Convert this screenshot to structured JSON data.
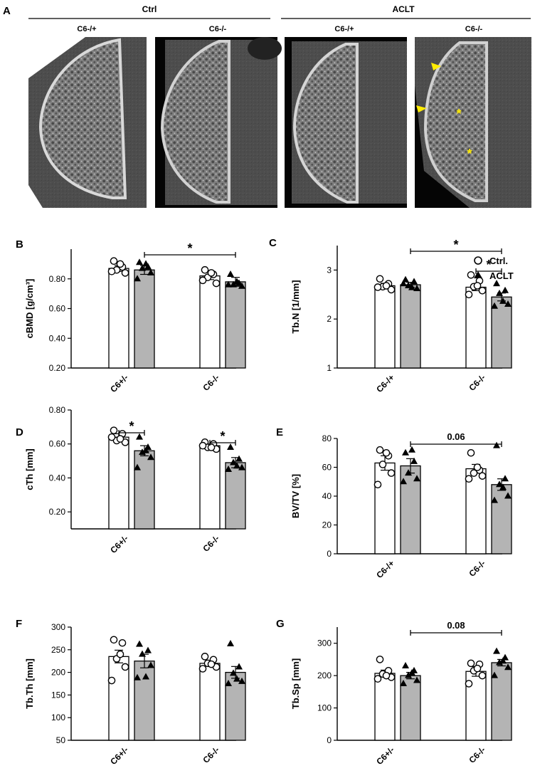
{
  "panel_a": {
    "letter": "A",
    "groups": [
      {
        "label": "Ctrl",
        "columns": [
          {
            "label": "C6-/+"
          },
          {
            "label": "C6-/-"
          }
        ]
      },
      {
        "label": "ACLT",
        "columns": [
          {
            "label": "C6-/+"
          },
          {
            "label": "C6-/-"
          }
        ]
      }
    ],
    "annotation_color": "#ffec00",
    "annotation_symbols": [
      "arrowhead",
      "arrowhead",
      "*",
      "*"
    ]
  },
  "legend": [
    {
      "label": "Ctrl.",
      "marker": "open-circle"
    },
    {
      "label": "ACLT",
      "marker": "filled-triangle"
    }
  ],
  "colors": {
    "ctrl_bar": "#ffffff",
    "aclt_bar": "#b4b4b4",
    "axis": "#000000",
    "highlight": "#ffec00"
  },
  "chart_data": [
    {
      "panel": "B",
      "type": "bar",
      "ylabel": "cBMD [g/cm³]",
      "ylim": [
        0.2,
        1.0
      ],
      "yticks": [
        0.2,
        0.4,
        0.6,
        0.8
      ],
      "tick_labels": [
        "0.20",
        "0.40",
        "0.60",
        "0.80"
      ],
      "categories": [
        "C6+/-",
        "C6-/-"
      ],
      "series": [
        {
          "name": "Ctrl.",
          "values": [
            0.87,
            0.82
          ],
          "sem": [
            0.02,
            0.025
          ],
          "points": [
            [
              0.92,
              0.88,
              0.86,
              0.84,
              0.85,
              0.9
            ],
            [
              0.86,
              0.83,
              0.81,
              0.77,
              0.79,
              0.84
            ]
          ]
        },
        {
          "name": "ACLT",
          "values": [
            0.86,
            0.78
          ],
          "sem": [
            0.03,
            0.03
          ],
          "points": [
            [
              0.91,
              0.88,
              0.87,
              0.84,
              0.8,
              0.9
            ],
            [
              0.83,
              0.77,
              0.76,
              0.75,
              0.76,
              0.78
            ]
          ]
        }
      ],
      "brackets": [
        {
          "from": [
            0,
            1
          ],
          "to": [
            1,
            1
          ],
          "label": "*"
        }
      ]
    },
    {
      "panel": "C",
      "type": "bar",
      "ylabel": "Tb.N [1/mm]",
      "ylim": [
        1,
        3.5
      ],
      "yticks": [
        1,
        2,
        3
      ],
      "tick_labels": [
        "1",
        "2",
        "3"
      ],
      "categories": [
        "C6-/+",
        "C6-/-"
      ],
      "series": [
        {
          "name": "Ctrl.",
          "values": [
            2.68,
            2.65
          ],
          "sem": [
            0.05,
            0.07
          ],
          "points": [
            [
              2.82,
              2.72,
              2.66,
              2.6,
              2.65,
              2.68
            ],
            [
              2.9,
              2.78,
              2.66,
              2.58,
              2.5,
              2.68
            ]
          ]
        },
        {
          "name": "ACLT",
          "values": [
            2.7,
            2.45
          ],
          "sem": [
            0.05,
            0.08
          ],
          "points": [
            [
              2.8,
              2.76,
              2.68,
              2.62,
              2.72,
              2.64
            ],
            [
              2.72,
              2.58,
              2.52,
              2.3,
              2.26,
              2.36
            ]
          ]
        }
      ],
      "brackets": [
        {
          "from": [
            0,
            1
          ],
          "to": [
            1,
            1
          ],
          "label": "*"
        },
        {
          "from": [
            1,
            0
          ],
          "to": [
            1,
            1
          ],
          "label": "*"
        }
      ]
    },
    {
      "panel": "D",
      "type": "bar",
      "ylabel": "cTh [mm]",
      "ylim": [
        0.1,
        0.8
      ],
      "yticks": [
        0.2,
        0.4,
        0.6,
        0.8
      ],
      "tick_labels": [
        "0.20",
        "0.40",
        "0.60",
        "0.80"
      ],
      "categories": [
        "C6+/-",
        "C6-/-"
      ],
      "series": [
        {
          "name": "Ctrl.",
          "values": [
            0.64,
            0.59
          ],
          "sem": [
            0.02,
            0.01
          ],
          "points": [
            [
              0.68,
              0.66,
              0.62,
              0.61,
              0.64,
              0.63
            ],
            [
              0.61,
              0.6,
              0.58,
              0.57,
              0.59,
              0.58
            ]
          ]
        },
        {
          "name": "ACLT",
          "values": [
            0.56,
            0.49
          ],
          "sem": [
            0.03,
            0.03
          ],
          "points": [
            [
              0.64,
              0.58,
              0.55,
              0.52,
              0.46,
              0.56
            ],
            [
              0.58,
              0.51,
              0.49,
              0.46,
              0.45,
              0.47
            ]
          ]
        }
      ],
      "brackets": [
        {
          "from": [
            0,
            0
          ],
          "to": [
            0,
            1
          ],
          "label": "*"
        },
        {
          "from": [
            1,
            0
          ],
          "to": [
            1,
            1
          ],
          "label": "*"
        }
      ]
    },
    {
      "panel": "E",
      "type": "bar",
      "ylabel": "BV/TV [%]",
      "ylim": [
        0,
        80
      ],
      "yticks": [
        0,
        20,
        40,
        60,
        80
      ],
      "tick_labels": [
        "0",
        "20",
        "40",
        "60",
        "80"
      ],
      "categories": [
        "C6-/+",
        "C6-/-"
      ],
      "series": [
        {
          "name": "Ctrl.",
          "values": [
            63,
            59
          ],
          "sem": [
            5,
            3
          ],
          "points": [
            [
              72,
              68,
              62,
              56,
              48,
              70
            ],
            [
              70,
              58,
              56,
              54,
              52,
              60
            ]
          ]
        },
        {
          "name": "ACLT",
          "values": [
            61,
            48
          ],
          "sem": [
            5,
            4
          ],
          "points": [
            [
              70,
              64,
              56,
              52,
              50,
              72
            ],
            [
              75,
              52,
              48,
              40,
              37,
              46
            ]
          ]
        }
      ],
      "brackets": [
        {
          "from": [
            0,
            1
          ],
          "to": [
            1,
            1
          ],
          "label": "0.06"
        }
      ]
    },
    {
      "panel": "F",
      "type": "bar",
      "ylabel": "Tb.Th [mm]",
      "ylim": [
        50,
        300
      ],
      "yticks": [
        50,
        100,
        150,
        200,
        250,
        300
      ],
      "tick_labels": [
        "50",
        "100",
        "150",
        "200",
        "250",
        "300"
      ],
      "categories": [
        "C6+/-",
        "C6-/-"
      ],
      "series": [
        {
          "name": "Ctrl.",
          "values": [
            235,
            220
          ],
          "sem": [
            14,
            6
          ],
          "points": [
            [
              272,
              265,
              230,
              212,
              182,
              240
            ],
            [
              235,
              228,
              220,
              212,
              208,
              218
            ]
          ]
        },
        {
          "name": "ACLT",
          "values": [
            225,
            200
          ],
          "sem": [
            15,
            13
          ],
          "points": [
            [
              262,
              248,
              240,
              215,
              188,
              190
            ],
            [
              263,
              212,
              198,
              180,
              175,
              185
            ]
          ]
        }
      ],
      "brackets": []
    },
    {
      "panel": "G",
      "type": "bar",
      "ylabel": "Tb.Sp [mm]",
      "ylim": [
        0,
        350
      ],
      "yticks": [
        0,
        100,
        200,
        300
      ],
      "tick_labels": [
        "0",
        "100",
        "200",
        "300"
      ],
      "categories": [
        "C6+/-",
        "C6-/-"
      ],
      "series": [
        {
          "name": "Ctrl.",
          "values": [
            207,
            213
          ],
          "sem": [
            10,
            15
          ],
          "points": [
            [
              250,
              215,
              205,
              195,
              190,
              200
            ],
            [
              238,
              235,
              215,
              200,
              175,
              222
            ]
          ]
        },
        {
          "name": "ACLT",
          "values": [
            200,
            240
          ],
          "sem": [
            10,
            10
          ],
          "points": [
            [
              230,
              215,
              200,
              185,
              175,
              208
            ],
            [
              275,
              255,
              240,
              225,
              200,
              245
            ]
          ]
        }
      ],
      "brackets": [
        {
          "from": [
            0,
            1
          ],
          "to": [
            1,
            1
          ],
          "label": "0.08"
        }
      ]
    }
  ]
}
